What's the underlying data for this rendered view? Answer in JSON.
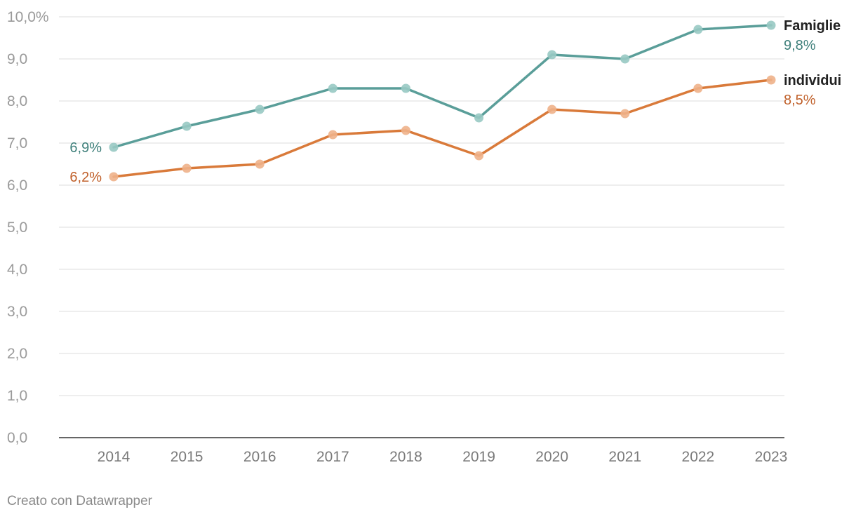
{
  "chart_data": {
    "type": "line",
    "x": [
      "2014",
      "2015",
      "2016",
      "2017",
      "2018",
      "2019",
      "2020",
      "2021",
      "2022",
      "2023"
    ],
    "ylim": [
      0,
      10
    ],
    "yticks": [
      "0,0",
      "1,0",
      "2,0",
      "3,0",
      "4,0",
      "5,0",
      "6,0",
      "7,0",
      "8,0",
      "9,0",
      "10,0%"
    ],
    "grid": true,
    "series": [
      {
        "name": "Famiglie",
        "values": [
          6.9,
          7.4,
          7.8,
          8.3,
          8.3,
          7.6,
          9.1,
          9.0,
          9.7,
          9.8
        ],
        "color": "#5a9e99",
        "marker_color": "#98c9c3",
        "label_color": "#3e7f7a",
        "start_label": "6,9%",
        "end_label": "9,8%"
      },
      {
        "name": "individui",
        "values": [
          6.2,
          6.4,
          6.5,
          7.2,
          7.3,
          6.7,
          7.8,
          7.7,
          8.3,
          8.5
        ],
        "color": "#d97a3a",
        "marker_color": "#eeb18a",
        "label_color": "#c0602a",
        "start_label": "6,2%",
        "end_label": "8,5%"
      }
    ]
  },
  "footer": "Creato con Datawrapper"
}
